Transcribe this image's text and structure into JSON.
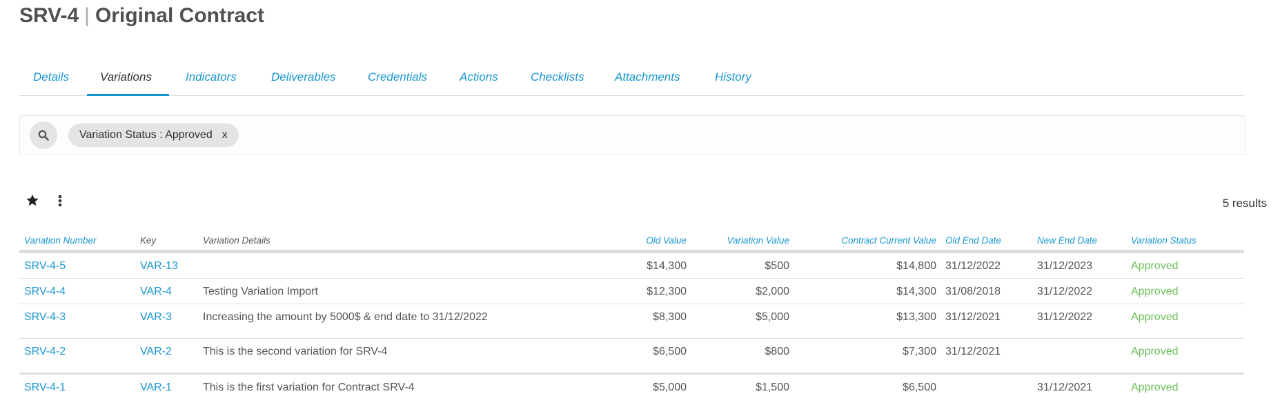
{
  "header": {
    "code": "SRV-4",
    "separator": "|",
    "title": "Original Contract"
  },
  "tabs": [
    {
      "label": "Details",
      "active": false
    },
    {
      "label": "Variations",
      "active": true
    },
    {
      "label": "Indicators",
      "active": false
    },
    {
      "label": "Deliverables",
      "active": false
    },
    {
      "label": "Credentials",
      "active": false
    },
    {
      "label": "Actions",
      "active": false
    },
    {
      "label": "Checklists",
      "active": false
    },
    {
      "label": "Attachments",
      "active": false
    },
    {
      "label": "History",
      "active": false
    }
  ],
  "filter": {
    "chip_label": "Variation Status : Approved",
    "chip_remove": "x",
    "icon": "search-icon"
  },
  "toolbar": {
    "results": "5 results",
    "icons": [
      "star-icon",
      "kebab-menu-icon"
    ]
  },
  "table": {
    "columns": [
      "Variation Number",
      "Key",
      "Variation Details",
      "Old Value",
      "Variation Value",
      "Contract Current Value",
      "Old End Date",
      "New End Date",
      "Variation Status"
    ],
    "rows": [
      {
        "number": "SRV-4-5",
        "key": "VAR-13",
        "details": "",
        "old_value": "$14,300",
        "variation_value": "$500",
        "current_value": "$14,800",
        "old_end": "31/12/2022",
        "new_end": "31/12/2023",
        "status": "Approved"
      },
      {
        "number": "SRV-4-4",
        "key": "VAR-4",
        "details": "Testing Variation Import",
        "old_value": "$12,300",
        "variation_value": "$2,000",
        "current_value": "$14,300",
        "old_end": "31/08/2018",
        "new_end": "31/12/2022",
        "status": "Approved"
      },
      {
        "number": "SRV-4-3",
        "key": "VAR-3",
        "details": "Increasing the amount by 5000$ & end date to 31/12/2022",
        "old_value": "$8,300",
        "variation_value": "$5,000",
        "current_value": "$13,300",
        "old_end": "31/12/2021",
        "new_end": "31/12/2022",
        "status": "Approved"
      },
      {
        "number": "SRV-4-2",
        "key": "VAR-2",
        "details": "This is the second variation for SRV-4",
        "old_value": "$6,500",
        "variation_value": "$800",
        "current_value": "$7,300",
        "old_end": "31/12/2021",
        "new_end": "",
        "status": "Approved"
      },
      {
        "number": "SRV-4-1",
        "key": "VAR-1",
        "details": "This is the first variation for Contract SRV-4",
        "old_value": "$5,000",
        "variation_value": "$1,500",
        "current_value": "$6,500",
        "old_end": "",
        "new_end": "31/12/2021",
        "status": "Approved"
      }
    ]
  },
  "colors": {
    "accent": "#1a96d2",
    "approved": "#6cbf5a",
    "text": "#555555"
  }
}
